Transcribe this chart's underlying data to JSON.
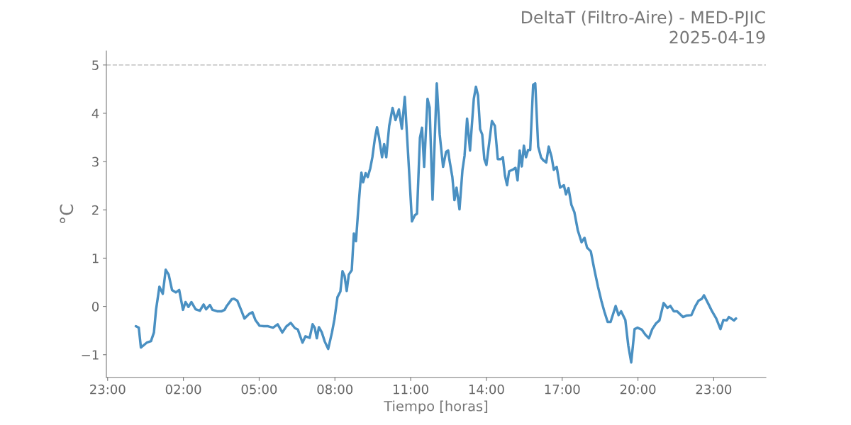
{
  "chart_data": {
    "type": "line",
    "title": "DeltaT (Filtro-Aire) - MED-PJIC",
    "subtitle": "2025-04-19",
    "xlabel": "Tiempo [horas]",
    "ylabel": "°C",
    "x": [
      "2025-04-19T00:07",
      "2025-04-19T00:14",
      "2025-04-19T00:19",
      "2025-04-19T00:33",
      "2025-04-19T00:43",
      "2025-04-19T00:50",
      "2025-04-19T00:55",
      "2025-04-19T01:03",
      "2025-04-19T01:11",
      "2025-04-19T01:18",
      "2025-04-19T01:25",
      "2025-04-19T01:33",
      "2025-04-19T01:42",
      "2025-04-19T01:50",
      "2025-04-19T01:59",
      "2025-04-19T02:05",
      "2025-04-19T02:12",
      "2025-04-19T02:19",
      "2025-04-19T02:29",
      "2025-04-19T02:39",
      "2025-04-19T02:48",
      "2025-04-19T02:54",
      "2025-04-19T03:03",
      "2025-04-19T03:09",
      "2025-04-19T03:20",
      "2025-04-19T03:31",
      "2025-04-19T03:38",
      "2025-04-19T03:43",
      "2025-04-19T03:55",
      "2025-04-19T04:00",
      "2025-04-19T04:08",
      "2025-04-19T04:17",
      "2025-04-19T04:25",
      "2025-04-19T04:37",
      "2025-04-19T04:44",
      "2025-04-19T04:51",
      "2025-04-19T05:01",
      "2025-04-19T05:11",
      "2025-04-19T05:21",
      "2025-04-19T05:33",
      "2025-04-19T05:44",
      "2025-04-19T05:55",
      "2025-04-19T06:05",
      "2025-04-19T06:15",
      "2025-04-19T06:25",
      "2025-04-19T06:32",
      "2025-04-19T06:38",
      "2025-04-19T06:43",
      "2025-04-19T06:50",
      "2025-04-19T07:00",
      "2025-04-19T07:07",
      "2025-04-19T07:12",
      "2025-04-19T07:17",
      "2025-04-19T07:22",
      "2025-04-19T07:29",
      "2025-04-19T07:36",
      "2025-04-19T07:44",
      "2025-04-19T07:53",
      "2025-04-19T07:59",
      "2025-04-19T08:06",
      "2025-04-19T08:13",
      "2025-04-19T08:18",
      "2025-04-19T08:23",
      "2025-04-19T08:28",
      "2025-04-19T08:33",
      "2025-04-19T08:40",
      "2025-04-19T08:45",
      "2025-04-19T08:50",
      "2025-04-19T08:55",
      "2025-04-19T09:00",
      "2025-04-19T09:03",
      "2025-04-19T09:07",
      "2025-04-19T09:13",
      "2025-04-19T09:18",
      "2025-04-19T09:24",
      "2025-04-19T09:29",
      "2025-04-19T09:35",
      "2025-04-19T09:40",
      "2025-04-19T09:45",
      "2025-04-19T09:52",
      "2025-04-19T09:57",
      "2025-04-19T10:02",
      "2025-04-19T10:09",
      "2025-04-19T10:17",
      "2025-04-19T10:24",
      "2025-04-19T10:32",
      "2025-04-19T10:39",
      "2025-04-19T10:46",
      "2025-04-19T10:58",
      "2025-04-19T11:03",
      "2025-04-19T11:10",
      "2025-04-19T11:15",
      "2025-04-19T11:22",
      "2025-04-19T11:27",
      "2025-04-19T11:32",
      "2025-04-19T11:40",
      "2025-04-19T11:45",
      "2025-04-19T11:52",
      "2025-04-19T12:02",
      "2025-04-19T12:09",
      "2025-04-19T12:17",
      "2025-04-19T12:24",
      "2025-04-19T12:29",
      "2025-04-19T12:32",
      "2025-04-19T12:39",
      "2025-04-19T12:44",
      "2025-04-19T12:49",
      "2025-04-19T12:56",
      "2025-04-19T13:03",
      "2025-04-19T13:08",
      "2025-04-19T13:14",
      "2025-04-19T13:21",
      "2025-04-19T13:30",
      "2025-04-19T13:35",
      "2025-04-19T13:40",
      "2025-04-19T13:45",
      "2025-04-19T13:50",
      "2025-04-19T13:55",
      "2025-04-19T14:00",
      "2025-04-19T14:07",
      "2025-04-19T14:13",
      "2025-04-19T14:20",
      "2025-04-19T14:27",
      "2025-04-19T14:34",
      "2025-04-19T14:39",
      "2025-04-19T14:44",
      "2025-04-19T14:49",
      "2025-04-19T14:54",
      "2025-04-19T15:02",
      "2025-04-19T15:09",
      "2025-04-19T15:14",
      "2025-04-19T15:19",
      "2025-04-19T15:24",
      "2025-04-19T15:29",
      "2025-04-19T15:34",
      "2025-04-19T15:39",
      "2025-04-19T15:44",
      "2025-04-19T15:51",
      "2025-04-19T15:56",
      "2025-04-19T16:03",
      "2025-04-19T16:10",
      "2025-04-19T16:16",
      "2025-04-19T16:22",
      "2025-04-19T16:28",
      "2025-04-19T16:35",
      "2025-04-19T16:40",
      "2025-04-19T16:47",
      "2025-04-19T16:55",
      "2025-04-19T17:04",
      "2025-04-19T17:09",
      "2025-04-19T17:15",
      "2025-04-19T17:22",
      "2025-04-19T17:29",
      "2025-04-19T17:37",
      "2025-04-19T17:46",
      "2025-04-19T17:53",
      "2025-04-19T17:59",
      "2025-04-19T18:08",
      "2025-04-19T18:16",
      "2025-04-19T18:25",
      "2025-04-19T18:33",
      "2025-04-19T18:40",
      "2025-04-19T18:48",
      "2025-04-19T18:55",
      "2025-04-19T19:07",
      "2025-04-19T19:14",
      "2025-04-19T19:20",
      "2025-04-19T19:30",
      "2025-04-19T19:37",
      "2025-04-19T19:44",
      "2025-04-19T19:52",
      "2025-04-19T19:59",
      "2025-04-19T20:09",
      "2025-04-19T20:18",
      "2025-04-19T20:26",
      "2025-04-19T20:34",
      "2025-04-19T20:43",
      "2025-04-19T20:51",
      "2025-04-19T21:01",
      "2025-04-19T21:10",
      "2025-04-19T21:17",
      "2025-04-19T21:25",
      "2025-04-19T21:33",
      "2025-04-19T21:47",
      "2025-04-19T21:55",
      "2025-04-19T22:07",
      "2025-04-19T22:16",
      "2025-04-19T22:24",
      "2025-04-19T22:32",
      "2025-04-19T22:37",
      "2025-04-19T22:48",
      "2025-04-19T22:56",
      "2025-04-19T23:06",
      "2025-04-19T23:16",
      "2025-04-19T23:23",
      "2025-04-19T23:31",
      "2025-04-19T23:36",
      "2025-04-19T23:43",
      "2025-04-19T23:48",
      "2025-04-19T23:53"
    ],
    "series": [
      {
        "color": "#4a90c2",
        "values": [
          -0.41,
          -0.44,
          -0.85,
          -0.75,
          -0.72,
          -0.54,
          -0.07,
          0.41,
          0.26,
          0.76,
          0.66,
          0.34,
          0.29,
          0.34,
          -0.07,
          0.09,
          -0.01,
          0.09,
          -0.06,
          -0.09,
          0.04,
          -0.06,
          0.03,
          -0.07,
          -0.1,
          -0.1,
          -0.07,
          0.01,
          0.15,
          0.16,
          0.12,
          -0.07,
          -0.25,
          -0.15,
          -0.12,
          -0.28,
          -0.4,
          -0.41,
          -0.41,
          -0.44,
          -0.37,
          -0.54,
          -0.41,
          -0.34,
          -0.45,
          -0.48,
          -0.63,
          -0.75,
          -0.62,
          -0.65,
          -0.37,
          -0.44,
          -0.66,
          -0.43,
          -0.54,
          -0.73,
          -0.88,
          -0.54,
          -0.26,
          0.19,
          0.31,
          0.73,
          0.63,
          0.32,
          0.66,
          0.75,
          1.51,
          1.35,
          1.95,
          2.51,
          2.77,
          2.57,
          2.76,
          2.68,
          2.86,
          3.09,
          3.48,
          3.71,
          3.49,
          3.09,
          3.36,
          3.09,
          3.74,
          4.11,
          3.86,
          4.08,
          3.68,
          4.34,
          2.54,
          1.76,
          1.89,
          1.92,
          3.49,
          3.7,
          2.89,
          4.3,
          4.12,
          2.21,
          4.62,
          3.56,
          2.89,
          3.2,
          3.23,
          3.04,
          2.68,
          2.2,
          2.46,
          2.01,
          2.82,
          3.12,
          3.89,
          3.23,
          4.3,
          4.55,
          4.37,
          3.67,
          3.56,
          3.05,
          2.93,
          3.42,
          3.84,
          3.74,
          3.05,
          3.05,
          3.09,
          2.71,
          2.51,
          2.8,
          2.83,
          2.87,
          2.61,
          3.23,
          2.9,
          3.33,
          3.09,
          3.24,
          3.24,
          4.59,
          4.62,
          3.31,
          3.08,
          3.02,
          2.98,
          3.31,
          3.09,
          2.83,
          2.89,
          2.46,
          2.51,
          2.32,
          2.45,
          2.1,
          1.95,
          1.58,
          1.33,
          1.42,
          1.22,
          1.14,
          0.78,
          0.41,
          0.12,
          -0.1,
          -0.32,
          -0.32,
          0.01,
          -0.18,
          -0.1,
          -0.28,
          -0.81,
          -1.16,
          -0.47,
          -0.44,
          -0.48,
          -0.59,
          -0.66,
          -0.47,
          -0.35,
          -0.29,
          0.07,
          -0.03,
          0.01,
          -0.1,
          -0.1,
          -0.22,
          -0.19,
          -0.18,
          0.0,
          0.12,
          0.16,
          0.23,
          0.04,
          -0.1,
          -0.25,
          -0.47,
          -0.28,
          -0.29,
          -0.22,
          -0.26,
          -0.29,
          -0.25
        ]
      }
    ],
    "xlim": [
      "2025-04-18T22:57",
      "2025-04-20T01:04"
    ],
    "xticks": [
      {
        "value": "2025-04-18T23:00",
        "label": "23:00"
      },
      {
        "value": "2025-04-19T02:00",
        "label": "02:00"
      },
      {
        "value": "2025-04-19T05:00",
        "label": "05:00"
      },
      {
        "value": "2025-04-19T08:00",
        "label": "08:00"
      },
      {
        "value": "2025-04-19T11:00",
        "label": "11:00"
      },
      {
        "value": "2025-04-19T14:00",
        "label": "14:00"
      },
      {
        "value": "2025-04-19T17:00",
        "label": "17:00"
      },
      {
        "value": "2025-04-19T20:00",
        "label": "20:00"
      },
      {
        "value": "2025-04-19T23:00",
        "label": "23:00"
      }
    ],
    "ylim": [
      -1.47,
      5.29
    ],
    "yticks": [
      {
        "value": -1,
        "label": "−1"
      },
      0,
      1,
      2,
      3,
      4,
      5
    ],
    "ref_lines": [
      {
        "axis": "y",
        "value": 5,
        "color": "#bbbbbb",
        "line_style": "dashed"
      }
    ],
    "grid": false,
    "legend": false
  }
}
